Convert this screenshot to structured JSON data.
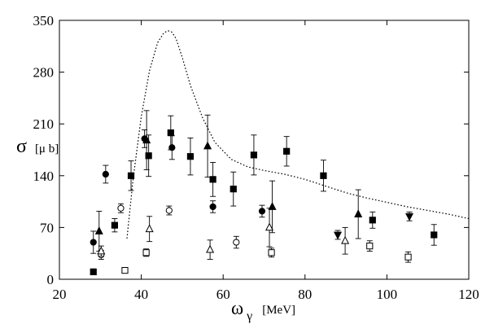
{
  "chart_data": {
    "type": "scatter",
    "title": "",
    "xlabel": {
      "symbol": "ω",
      "subscript": "γ",
      "unit": "[MeV]"
    },
    "ylabel": {
      "symbol": "σ",
      "unit": "[μ b]"
    },
    "xlim": [
      20,
      120
    ],
    "ylim": [
      0,
      350
    ],
    "xticks": [
      20,
      40,
      60,
      80,
      100,
      120
    ],
    "yticks": [
      0,
      70,
      140,
      210,
      280,
      350
    ],
    "grid": false,
    "legend": "none",
    "curve": {
      "name": "theory",
      "style": "dotted",
      "x": [
        36.5,
        38,
        40,
        42,
        44,
        45.5,
        46.5,
        47.5,
        48.5,
        50,
        52,
        55,
        58,
        62,
        66,
        70,
        75,
        80,
        85,
        90,
        95,
        100,
        105,
        110,
        115,
        120
      ],
      "y": [
        55,
        135,
        220,
        282,
        320,
        333,
        336,
        334,
        325,
        300,
        262,
        218,
        185,
        162,
        152,
        147,
        142,
        135,
        126,
        117,
        110,
        104,
        98,
        93,
        88,
        82
      ]
    },
    "series": [
      {
        "name": "filled squares",
        "marker": "square",
        "fill": "filled",
        "points": [
          {
            "x": 28.3,
            "y": 10,
            "err": 4
          },
          {
            "x": 33.5,
            "y": 73,
            "err": 9
          },
          {
            "x": 37.5,
            "y": 140,
            "err": 20
          },
          {
            "x": 41.8,
            "y": 167,
            "err": 28
          },
          {
            "x": 47.2,
            "y": 198,
            "err": 23
          },
          {
            "x": 52,
            "y": 166,
            "err": 25
          },
          {
            "x": 57.5,
            "y": 135,
            "err": 23
          },
          {
            "x": 62.5,
            "y": 122,
            "err": 23
          },
          {
            "x": 67.5,
            "y": 168,
            "err": 27
          },
          {
            "x": 75.5,
            "y": 173,
            "err": 20
          },
          {
            "x": 84.5,
            "y": 140,
            "err": 21
          },
          {
            "x": 96.5,
            "y": 80,
            "err": 11
          },
          {
            "x": 111.5,
            "y": 60,
            "err": 14
          }
        ]
      },
      {
        "name": "filled circles",
        "marker": "circle",
        "fill": "filled",
        "points": [
          {
            "x": 28.3,
            "y": 50,
            "err": 15
          },
          {
            "x": 31.3,
            "y": 142,
            "err": 12
          },
          {
            "x": 40.8,
            "y": 190,
            "err": 12
          },
          {
            "x": 47.5,
            "y": 178,
            "err": 16
          },
          {
            "x": 57.5,
            "y": 98,
            "err": 8
          },
          {
            "x": 69.5,
            "y": 92,
            "err": 8
          }
        ]
      },
      {
        "name": "filled triangles",
        "marker": "triangle-up",
        "fill": "filled",
        "points": [
          {
            "x": 29.7,
            "y": 65,
            "err": 27
          },
          {
            "x": 41.3,
            "y": 188,
            "err": 40
          },
          {
            "x": 56.2,
            "y": 180,
            "err": 42
          },
          {
            "x": 72,
            "y": 98,
            "err": 35
          },
          {
            "x": 93,
            "y": 88,
            "err": 33
          }
        ]
      },
      {
        "name": "filled inverted triangles",
        "marker": "triangle-down",
        "fill": "filled",
        "points": [
          {
            "x": 88,
            "y": 60,
            "err": 6
          },
          {
            "x": 105.5,
            "y": 85,
            "err": 6
          }
        ]
      },
      {
        "name": "open circles",
        "marker": "circle",
        "fill": "open",
        "points": [
          {
            "x": 30.2,
            "y": 33,
            "err": 6
          },
          {
            "x": 35,
            "y": 96,
            "err": 6
          },
          {
            "x": 46.8,
            "y": 93,
            "err": 6
          },
          {
            "x": 63.2,
            "y": 50,
            "err": 8
          }
        ]
      },
      {
        "name": "open triangles",
        "marker": "triangle-up",
        "fill": "open",
        "points": [
          {
            "x": 30.2,
            "y": 38,
            "err": 7
          },
          {
            "x": 42,
            "y": 68,
            "err": 17
          },
          {
            "x": 56.8,
            "y": 40,
            "err": 13
          },
          {
            "x": 71.3,
            "y": 70,
            "err": 26
          },
          {
            "x": 89.8,
            "y": 52,
            "err": 18
          }
        ]
      },
      {
        "name": "open squares",
        "marker": "square",
        "fill": "open",
        "points": [
          {
            "x": 36,
            "y": 12,
            "err": 3
          },
          {
            "x": 41.2,
            "y": 36,
            "err": 5
          },
          {
            "x": 71.8,
            "y": 36,
            "err": 6
          },
          {
            "x": 95.8,
            "y": 45,
            "err": 7
          },
          {
            "x": 105.2,
            "y": 30,
            "err": 7
          }
        ]
      }
    ]
  }
}
